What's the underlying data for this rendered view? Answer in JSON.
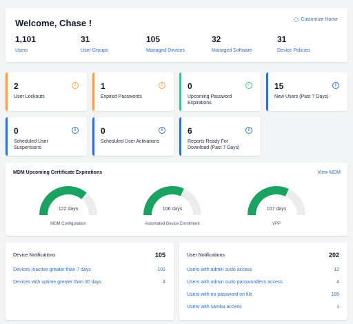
{
  "welcome": {
    "title": "Welcome, Chase !",
    "customize_label": "Customize Home",
    "stats": [
      {
        "value": "1,101",
        "label": "Users"
      },
      {
        "value": "31",
        "label": "User Groups"
      },
      {
        "value": "105",
        "label": "Managed Devices"
      },
      {
        "value": "32",
        "label": "Managed Software"
      },
      {
        "value": "31",
        "label": "Device Policies"
      }
    ]
  },
  "tiles": [
    {
      "value": "2",
      "label": "User Lockouts",
      "status": "warning",
      "icon": "alert-circle-icon"
    },
    {
      "value": "1",
      "label": "Expired Passwords",
      "status": "warning",
      "icon": "alert-circle-icon"
    },
    {
      "value": "0",
      "label": "Upcoming Password Expirations",
      "status": "success",
      "icon": "check-circle-icon"
    },
    {
      "value": "15",
      "label": "New Users (Past 7 Days)",
      "status": "info",
      "icon": "info-circle-icon"
    },
    {
      "value": "0",
      "label": "Scheduled User Suspensions",
      "status": "info",
      "icon": "info-circle-icon"
    },
    {
      "value": "0",
      "label": "Scheduled User Activations",
      "status": "info",
      "icon": "info-circle-icon"
    },
    {
      "value": "6",
      "label": "Reports Ready For Download (Past 7 Days)",
      "status": "info",
      "icon": "info-circle-icon"
    }
  ],
  "mdm": {
    "title": "MDM Upcoming Certificate Expirations",
    "view_label": "View MDM",
    "gauges": [
      {
        "days_label": "122 days",
        "caption": "MDM Configuration",
        "fraction": 0.72
      },
      {
        "days_label": "106 days",
        "caption": "Automated Device Enrollment",
        "fraction": 0.63
      },
      {
        "days_label": "107 days",
        "caption": "VPP",
        "fraction": 0.64
      }
    ]
  },
  "device_notifications": {
    "title": "Device Notifications",
    "total": "105",
    "rows": [
      {
        "label": "Devices inactive greater than 7 days",
        "count": "101"
      },
      {
        "label": "Devices with uptime greater than 30 days",
        "count": "4"
      }
    ]
  },
  "user_notifications": {
    "title": "User Notifications",
    "total": "202",
    "rows": [
      {
        "label": "Users with admin sudo access",
        "count": "12"
      },
      {
        "label": "Users with admin sudo passwordless access",
        "count": "4"
      },
      {
        "label": "Users with no password on file",
        "count": "185"
      },
      {
        "label": "Users with samba access",
        "count": "1"
      }
    ]
  },
  "colors": {
    "warning": "#f0a04b",
    "success": "#3ec28f",
    "info": "#2f6fc8",
    "gauge_fill": "#1aa260",
    "gauge_track": "#ececec"
  }
}
